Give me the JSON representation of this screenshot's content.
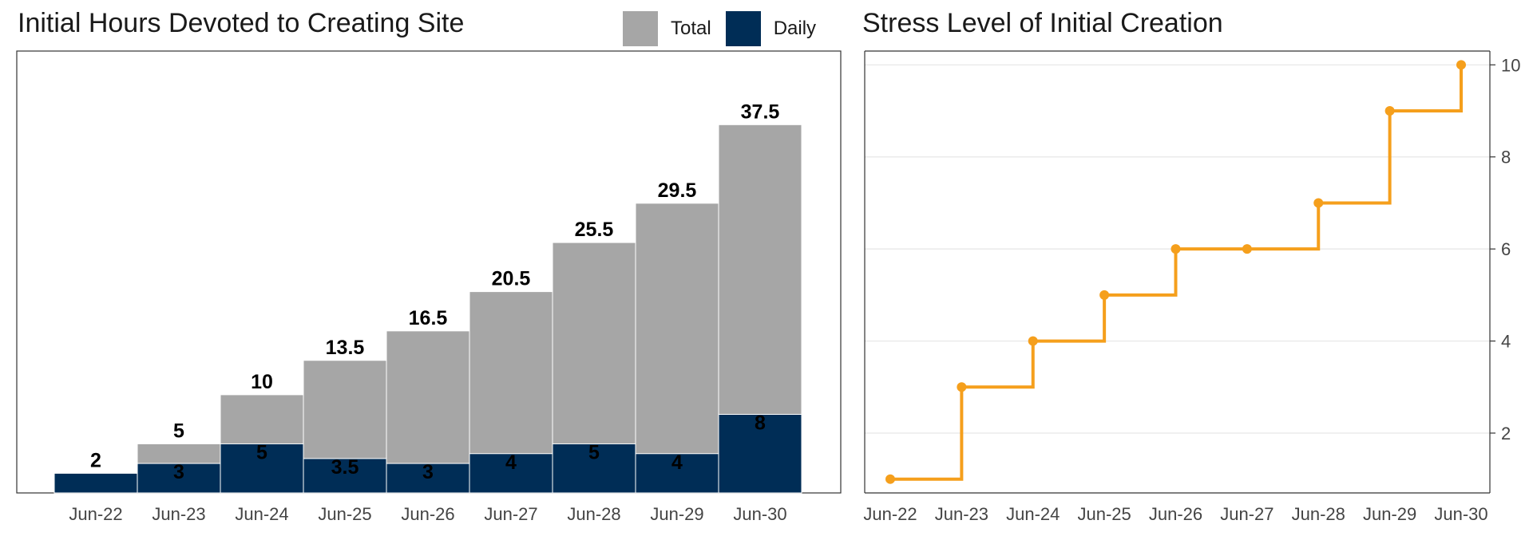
{
  "colors": {
    "total": "#a6a6a6",
    "daily": "#002d56",
    "stress": "#f59f1c",
    "grid": "#e6e6e6",
    "axis_text": "#444444"
  },
  "chart_data": [
    {
      "type": "bar",
      "title": "Initial Hours Devoted to Creating Site",
      "categories": [
        "Jun-22",
        "Jun-23",
        "Jun-24",
        "Jun-25",
        "Jun-26",
        "Jun-27",
        "Jun-28",
        "Jun-29",
        "Jun-30"
      ],
      "series": [
        {
          "name": "Total",
          "values": [
            2,
            5,
            10,
            13.5,
            16.5,
            20.5,
            25.5,
            29.5,
            37.5
          ]
        },
        {
          "name": "Daily",
          "values": [
            2,
            3,
            5,
            3.5,
            3,
            4,
            5,
            4,
            8
          ]
        }
      ],
      "stacking": "overlaid",
      "legend": "top-right",
      "ylim": [
        0,
        45
      ],
      "grid": false,
      "xlabel": "",
      "ylabel": ""
    },
    {
      "type": "line",
      "step": true,
      "title": "Stress Level of Initial Creation",
      "categories": [
        "Jun-22",
        "Jun-23",
        "Jun-24",
        "Jun-25",
        "Jun-26",
        "Jun-27",
        "Jun-28",
        "Jun-29",
        "Jun-30"
      ],
      "values": [
        1,
        3,
        4,
        5,
        6,
        6,
        7,
        9,
        10
      ],
      "yticks": [
        2,
        4,
        6,
        8,
        10
      ],
      "ylim": [
        0.7,
        10.3
      ],
      "y_axis_position": "right",
      "grid": true,
      "xlabel": "",
      "ylabel": ""
    }
  ]
}
